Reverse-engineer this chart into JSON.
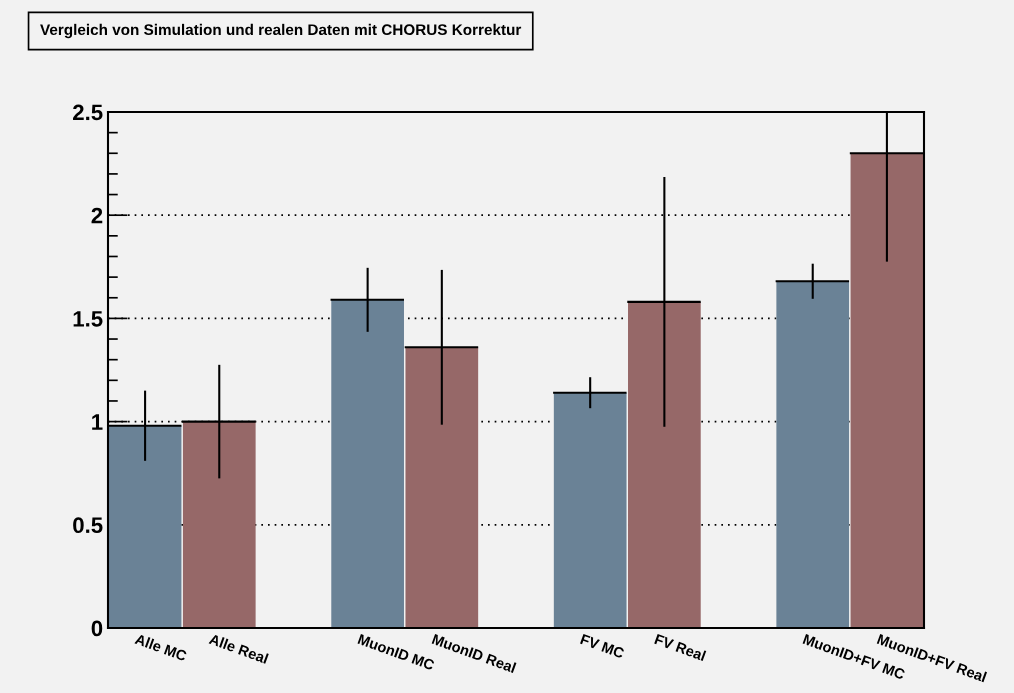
{
  "chart_data": {
    "type": "bar",
    "title": "Vergleich von Simulation und realen Daten mit CHORUS Korrektur",
    "categories": [
      "Alle MC",
      "Alle Real",
      null,
      "MuonID MC",
      "MuonID Real",
      null,
      "FV MC",
      "FV Real",
      null,
      "MuonID+FV MC",
      "MuonID+FV Real"
    ],
    "values": [
      0.98,
      1.0,
      null,
      1.59,
      1.36,
      null,
      1.14,
      1.58,
      null,
      1.68,
      2.3
    ],
    "errors": [
      0.165,
      0.27,
      null,
      0.15,
      0.37,
      null,
      0.07,
      0.6,
      null,
      0.08,
      [
        1.78,
        2.5
      ]
    ],
    "colors": [
      "#6a8296",
      "#966868",
      "#6a8296",
      "#6a8296",
      "#966868",
      "#6a8296",
      "#6a8296",
      "#966868",
      "#6a8296",
      "#6a8296",
      "#966868"
    ],
    "ylim": [
      0,
      2.5
    ],
    "yticks": [
      0,
      0.5,
      1,
      1.5,
      2,
      2.5
    ],
    "grid": "y"
  }
}
